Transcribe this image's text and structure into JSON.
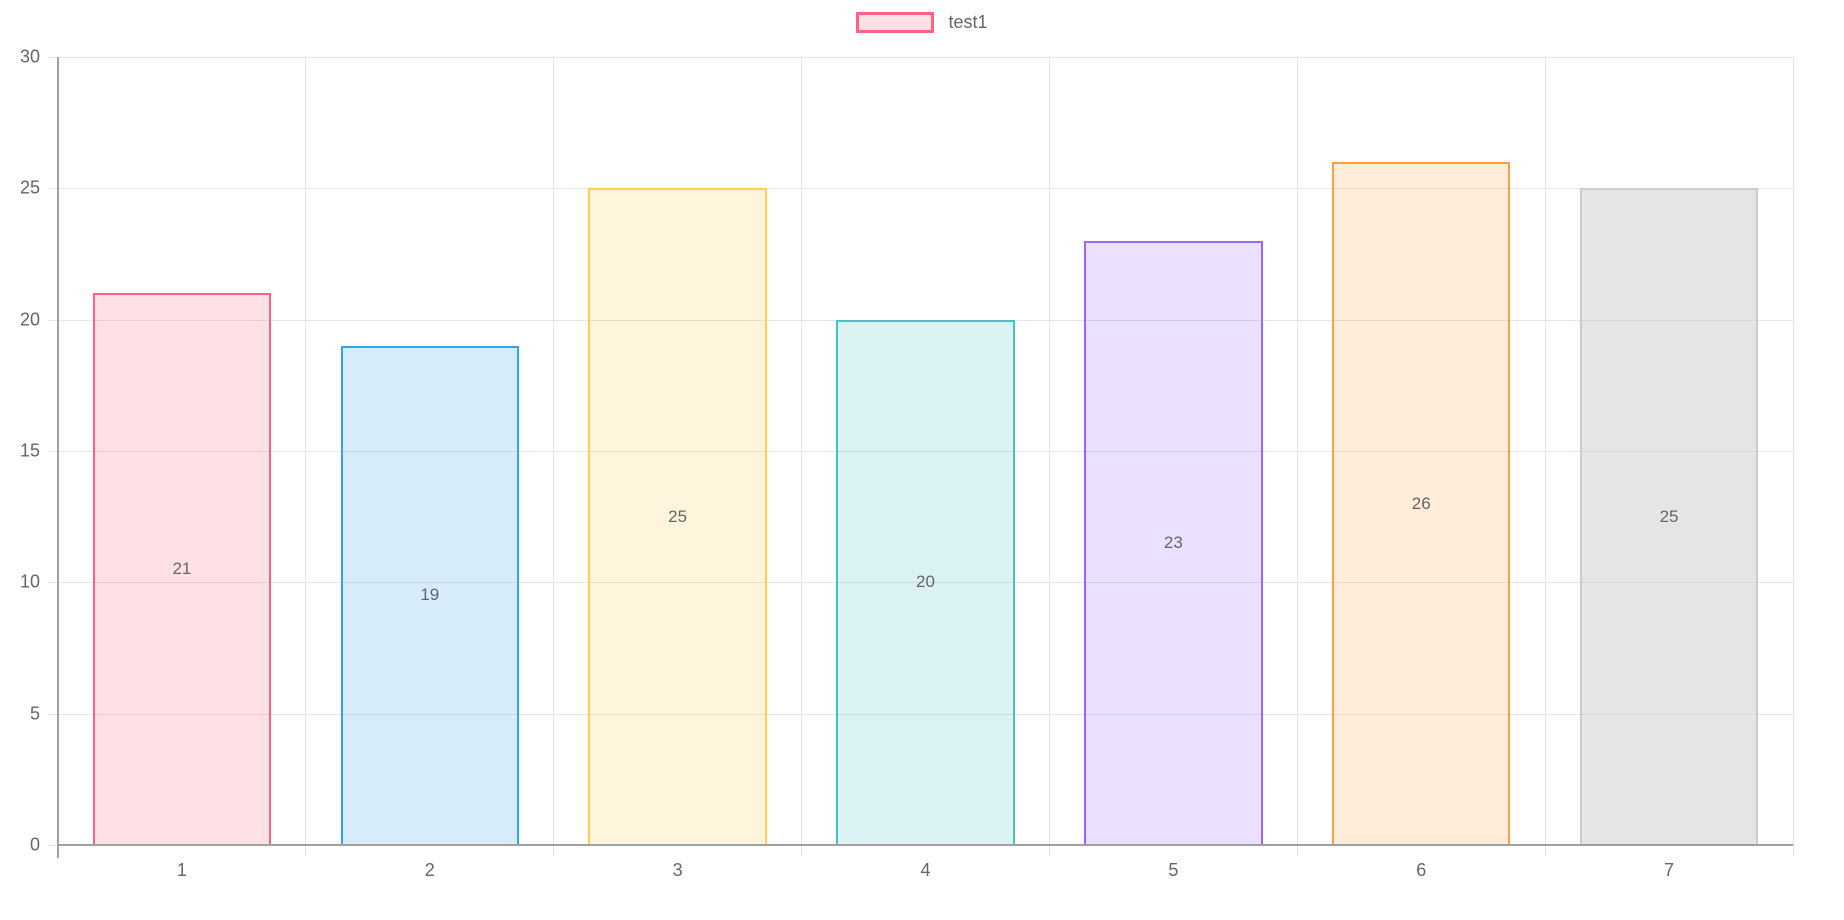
{
  "legend": {
    "label": "test1",
    "swatch_fill": "rgba(255,99,132,0.2)",
    "swatch_border": "#FF6384"
  },
  "chart_data": {
    "type": "bar",
    "title": "",
    "xlabel": "",
    "ylabel": "",
    "categories": [
      "1",
      "2",
      "3",
      "4",
      "5",
      "6",
      "7"
    ],
    "series": [
      {
        "name": "test1",
        "values": [
          21,
          19,
          25,
          20,
          23,
          26,
          25
        ]
      }
    ],
    "value_labels": [
      "21",
      "19",
      "25",
      "20",
      "23",
      "26",
      "25"
    ],
    "ylim": [
      0,
      30
    ],
    "yticks": [
      0,
      5,
      10,
      15,
      20,
      25,
      30
    ],
    "grid": true,
    "legend_position": "top-center",
    "bar_border_colors": [
      "#FF6384",
      "#36A2EB",
      "#FFCE56",
      "#4BC0C0",
      "#9966FF",
      "#FF9F40",
      "#C9CBCF"
    ],
    "bar_fill_colors": [
      "rgba(255,99,132,0.2)",
      "rgba(54,162,235,0.2)",
      "rgba(255,206,86,0.2)",
      "rgba(75,192,192,0.2)",
      "rgba(153,102,255,0.2)",
      "rgba(255,159,64,0.2)",
      "rgba(201,203,207,0.5)"
    ],
    "colors": {
      "axis": "#a0a0a0",
      "grid": "#e6e6e6",
      "text": "#666666"
    }
  }
}
